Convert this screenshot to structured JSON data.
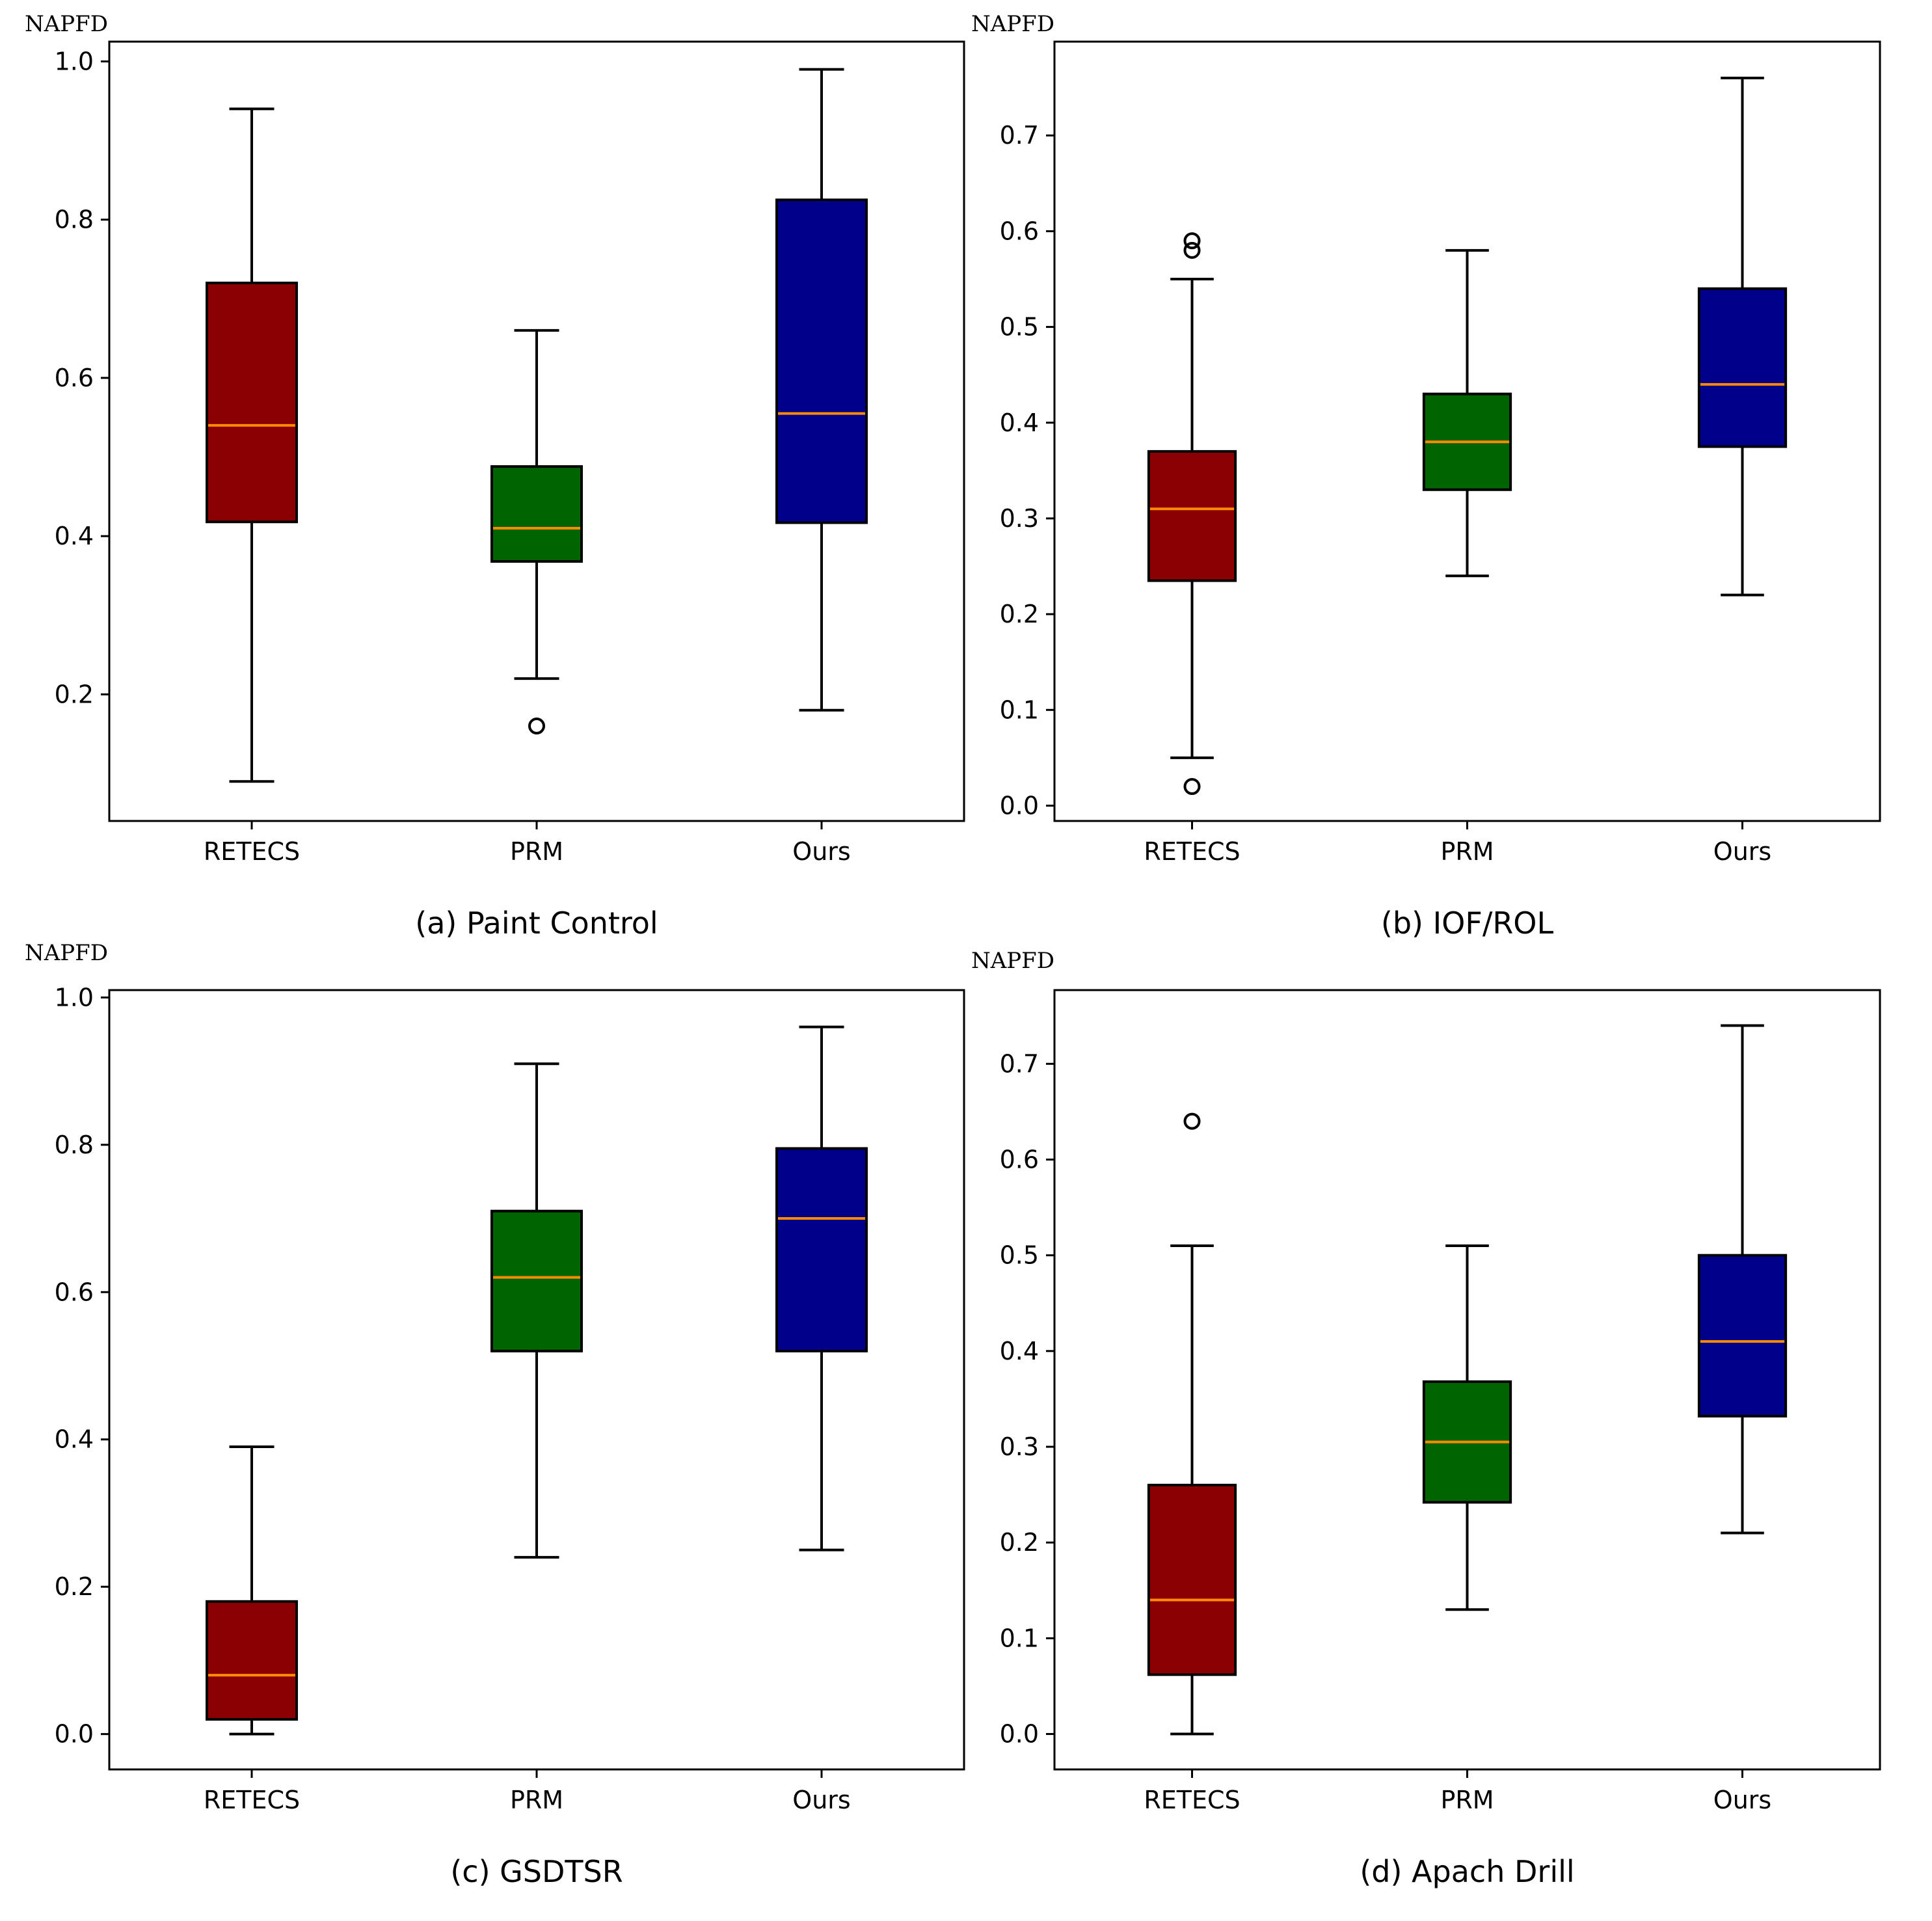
{
  "colors": {
    "RETECS": "#8b0000",
    "PRM": "#006400",
    "Ours": "#00008b",
    "median": "#ff8c00",
    "line": "#000000"
  },
  "chart_data": [
    {
      "type": "box",
      "caption": "(a) Paint Control",
      "ylabel": "NAPFD",
      "ylim": [
        0.04,
        1.025
      ],
      "yticks": [
        {
          "v": 0.2,
          "label": "0.2"
        },
        {
          "v": 0.4,
          "label": "0.4"
        },
        {
          "v": 0.6,
          "label": "0.6"
        },
        {
          "v": 0.8,
          "label": "0.8"
        },
        {
          "v": 1.0,
          "label": "1.0"
        }
      ],
      "categories": [
        "RETECS",
        "PRM",
        "Ours"
      ],
      "boxes": [
        {
          "name": "RETECS",
          "whislo": 0.09,
          "q1": 0.418,
          "med": 0.54,
          "q3": 0.72,
          "whishi": 0.94,
          "fliers": []
        },
        {
          "name": "PRM",
          "whislo": 0.22,
          "q1": 0.368,
          "med": 0.41,
          "q3": 0.488,
          "whishi": 0.66,
          "fliers": [
            0.16
          ]
        },
        {
          "name": "Ours",
          "whislo": 0.18,
          "q1": 0.417,
          "med": 0.555,
          "q3": 0.825,
          "whishi": 0.99,
          "fliers": []
        }
      ]
    },
    {
      "type": "box",
      "caption": "(b) IOF/ROL",
      "ylabel": "NAPFD",
      "ylim": [
        -0.016,
        0.798
      ],
      "yticks": [
        {
          "v": 0.0,
          "label": "0.0"
        },
        {
          "v": 0.1,
          "label": "0.1"
        },
        {
          "v": 0.2,
          "label": "0.2"
        },
        {
          "v": 0.3,
          "label": "0.3"
        },
        {
          "v": 0.4,
          "label": "0.4"
        },
        {
          "v": 0.5,
          "label": "0.5"
        },
        {
          "v": 0.6,
          "label": "0.6"
        },
        {
          "v": 0.7,
          "label": "0.7"
        }
      ],
      "categories": [
        "RETECS",
        "PRM",
        "Ours"
      ],
      "boxes": [
        {
          "name": "RETECS",
          "whislo": 0.05,
          "q1": 0.235,
          "med": 0.31,
          "q3": 0.37,
          "whishi": 0.55,
          "fliers": [
            0.02,
            0.58,
            0.59
          ]
        },
        {
          "name": "PRM",
          "whislo": 0.24,
          "q1": 0.33,
          "med": 0.38,
          "q3": 0.43,
          "whishi": 0.58,
          "fliers": []
        },
        {
          "name": "Ours",
          "whislo": 0.22,
          "q1": 0.375,
          "med": 0.44,
          "q3": 0.54,
          "whishi": 0.76,
          "fliers": []
        }
      ]
    },
    {
      "type": "box",
      "caption": "(c) GSDTSR",
      "ylabel": "NAPFD",
      "ylim": [
        -0.048,
        1.01
      ],
      "yticks": [
        {
          "v": 0.0,
          "label": "0.0"
        },
        {
          "v": 0.2,
          "label": "0.2"
        },
        {
          "v": 0.4,
          "label": "0.4"
        },
        {
          "v": 0.6,
          "label": "0.6"
        },
        {
          "v": 0.8,
          "label": "0.8"
        },
        {
          "v": 1.0,
          "label": "1.0"
        }
      ],
      "categories": [
        "RETECS",
        "PRM",
        "Ours"
      ],
      "boxes": [
        {
          "name": "RETECS",
          "whislo": 0.0,
          "q1": 0.02,
          "med": 0.08,
          "q3": 0.18,
          "whishi": 0.39,
          "fliers": []
        },
        {
          "name": "PRM",
          "whislo": 0.24,
          "q1": 0.52,
          "med": 0.62,
          "q3": 0.71,
          "whishi": 0.91,
          "fliers": []
        },
        {
          "name": "Ours",
          "whislo": 0.25,
          "q1": 0.52,
          "med": 0.7,
          "q3": 0.795,
          "whishi": 0.96,
          "fliers": []
        }
      ]
    },
    {
      "type": "box",
      "caption": "(d) Apach Drill",
      "ylabel": "NAPFD",
      "ylim": [
        -0.037,
        0.777
      ],
      "yticks": [
        {
          "v": 0.0,
          "label": "0.0"
        },
        {
          "v": 0.1,
          "label": "0.1"
        },
        {
          "v": 0.2,
          "label": "0.2"
        },
        {
          "v": 0.3,
          "label": "0.3"
        },
        {
          "v": 0.4,
          "label": "0.4"
        },
        {
          "v": 0.5,
          "label": "0.5"
        },
        {
          "v": 0.6,
          "label": "0.6"
        },
        {
          "v": 0.7,
          "label": "0.7"
        }
      ],
      "categories": [
        "RETECS",
        "PRM",
        "Ours"
      ],
      "boxes": [
        {
          "name": "RETECS",
          "whislo": 0.0,
          "q1": 0.062,
          "med": 0.14,
          "q3": 0.26,
          "whishi": 0.51,
          "fliers": [
            0.64
          ]
        },
        {
          "name": "PRM",
          "whislo": 0.13,
          "q1": 0.242,
          "med": 0.305,
          "q3": 0.368,
          "whishi": 0.51,
          "fliers": []
        },
        {
          "name": "Ours",
          "whislo": 0.21,
          "q1": 0.332,
          "med": 0.41,
          "q3": 0.5,
          "whishi": 0.74,
          "fliers": []
        }
      ]
    }
  ]
}
